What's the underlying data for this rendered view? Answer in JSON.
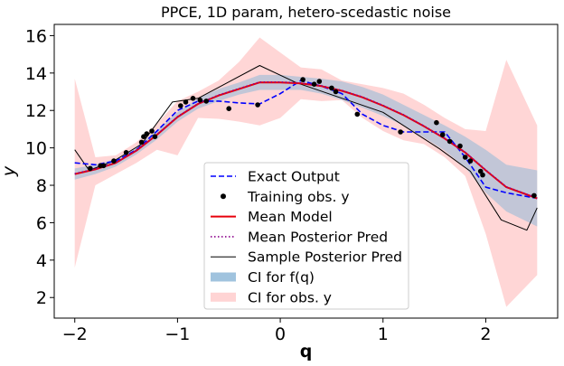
{
  "chart_data": {
    "type": "line",
    "title": "PPCE, 1D param, hetero-scedastic noise",
    "xlabel": "q",
    "ylabel": "y",
    "xlim": [
      -2.2,
      2.7
    ],
    "ylim": [
      0.9,
      16.6
    ],
    "xticks": [
      -2,
      -1,
      0,
      1,
      2
    ],
    "yticks": [
      2,
      4,
      6,
      8,
      10,
      12,
      14,
      16
    ],
    "grid": false,
    "legend_position": "bottom-center",
    "series": [
      {
        "name": "Exact Output",
        "style": "dashed",
        "color": "#0000ff",
        "x": [
          -2.0,
          -1.8,
          -1.6,
          -1.4,
          -1.2,
          -1.0,
          -0.8,
          -0.6,
          -0.4,
          -0.2,
          0.0,
          0.2,
          0.4,
          0.6,
          0.8,
          1.0,
          1.2,
          1.4,
          1.6,
          1.8,
          2.0,
          2.2,
          2.5
        ],
        "y": [
          9.2,
          9.1,
          9.3,
          9.9,
          10.9,
          12.0,
          12.5,
          12.5,
          12.4,
          12.35,
          12.9,
          13.6,
          13.3,
          12.9,
          11.8,
          11.2,
          10.85,
          10.85,
          10.85,
          9.5,
          7.9,
          7.6,
          7.3
        ]
      },
      {
        "name": "Training obs. y",
        "style": "points",
        "color": "#000000",
        "x": [
          -1.85,
          -1.75,
          -1.72,
          -1.62,
          -1.5,
          -1.35,
          -1.33,
          -1.3,
          -1.25,
          -1.22,
          -0.97,
          -0.92,
          -0.85,
          -0.78,
          -0.72,
          -0.5,
          -0.22,
          0.22,
          0.33,
          0.38,
          0.5,
          0.54,
          0.75,
          1.17,
          1.52,
          1.58,
          1.65,
          1.75,
          1.8,
          1.85,
          1.95,
          1.97,
          2.47
        ],
        "y": [
          8.9,
          9.05,
          9.05,
          9.3,
          9.75,
          10.3,
          10.6,
          10.75,
          10.9,
          10.6,
          12.25,
          12.45,
          12.65,
          12.55,
          12.5,
          12.1,
          12.3,
          13.65,
          13.4,
          13.55,
          13.2,
          13.0,
          11.8,
          10.85,
          11.35,
          10.7,
          10.35,
          10.1,
          9.5,
          9.3,
          8.75,
          8.55,
          7.45
        ]
      },
      {
        "name": "Mean Model",
        "style": "solid",
        "color": "#e8000b",
        "x": [
          -2.0,
          -1.8,
          -1.6,
          -1.4,
          -1.2,
          -1.0,
          -0.8,
          -0.6,
          -0.4,
          -0.2,
          0.0,
          0.2,
          0.4,
          0.6,
          0.8,
          1.0,
          1.2,
          1.4,
          1.6,
          1.8,
          2.0,
          2.2,
          2.5
        ],
        "y": [
          8.6,
          8.85,
          9.2,
          9.85,
          10.7,
          11.65,
          12.35,
          12.8,
          13.15,
          13.5,
          13.5,
          13.45,
          13.3,
          13.05,
          12.7,
          12.25,
          11.75,
          11.15,
          10.5,
          9.75,
          8.8,
          7.9,
          7.3
        ]
      },
      {
        "name": "Mean Posterior Pred",
        "style": "dotted",
        "color": "#8b008b",
        "x": [
          -2.0,
          -1.8,
          -1.6,
          -1.4,
          -1.2,
          -1.0,
          -0.8,
          -0.6,
          -0.4,
          -0.2,
          0.0,
          0.2,
          0.4,
          0.6,
          0.8,
          1.0,
          1.2,
          1.4,
          1.6,
          1.8,
          2.0,
          2.2,
          2.5
        ],
        "y": [
          8.62,
          8.87,
          9.22,
          9.87,
          10.72,
          11.67,
          12.37,
          12.82,
          13.17,
          13.52,
          13.52,
          13.47,
          13.32,
          13.07,
          12.72,
          12.27,
          11.77,
          11.17,
          10.52,
          9.77,
          8.82,
          7.92,
          7.32
        ]
      },
      {
        "name": "Sample Posterior Pred",
        "style": "solid-thin",
        "color": "#000000",
        "x": [
          -2.0,
          -1.86,
          -1.62,
          -1.35,
          -1.05,
          -0.8,
          -0.2,
          0.15,
          1.0,
          1.55,
          1.85,
          2.15,
          2.4,
          2.5
        ],
        "y": [
          9.9,
          8.8,
          9.3,
          10.2,
          12.45,
          12.65,
          14.4,
          13.5,
          11.9,
          9.95,
          8.75,
          6.15,
          5.6,
          6.8
        ]
      }
    ],
    "bands": [
      {
        "name": "CI for f(q)",
        "color": "#8fb9d8",
        "opacity": 0.55,
        "x": [
          -2.0,
          -1.8,
          -1.6,
          -1.4,
          -1.2,
          -1.0,
          -0.8,
          -0.6,
          -0.4,
          -0.2,
          0.0,
          0.2,
          0.4,
          0.6,
          0.8,
          1.0,
          1.2,
          1.4,
          1.6,
          1.8,
          2.0,
          2.2,
          2.5
        ],
        "lower": [
          8.3,
          8.6,
          9.0,
          9.65,
          10.45,
          11.4,
          12.1,
          12.5,
          12.85,
          13.1,
          13.1,
          13.1,
          12.9,
          12.55,
          12.15,
          11.7,
          11.2,
          10.55,
          9.85,
          8.95,
          7.6,
          6.6,
          5.8
        ],
        "upper": [
          8.9,
          9.1,
          9.4,
          10.05,
          10.95,
          11.9,
          12.65,
          13.15,
          13.5,
          13.9,
          13.9,
          13.8,
          13.7,
          13.55,
          13.25,
          12.85,
          12.3,
          11.75,
          11.2,
          10.6,
          9.9,
          9.1,
          8.8
        ]
      },
      {
        "name": "CI for obs. y",
        "color": "#ff9999",
        "opacity": 0.4,
        "x": [
          -2.0,
          -1.8,
          -1.6,
          -1.4,
          -1.2,
          -1.0,
          -0.8,
          -0.6,
          -0.4,
          -0.2,
          0.0,
          0.2,
          0.4,
          0.6,
          0.8,
          1.0,
          1.2,
          1.4,
          1.6,
          1.8,
          2.0,
          2.2,
          2.5
        ],
        "lower": [
          3.6,
          8.0,
          8.6,
          9.2,
          9.9,
          9.6,
          11.6,
          11.55,
          11.4,
          11.2,
          11.6,
          12.6,
          12.5,
          12.55,
          11.6,
          10.9,
          10.4,
          10.2,
          9.5,
          8.5,
          5.4,
          1.5,
          3.2
        ],
        "upper": [
          13.7,
          9.5,
          9.6,
          10.3,
          11.3,
          12.5,
          13.0,
          13.6,
          14.6,
          15.9,
          15.1,
          14.3,
          14.2,
          13.6,
          13.4,
          13.2,
          12.9,
          12.3,
          11.6,
          11.0,
          10.9,
          14.7,
          11.2
        ]
      }
    ],
    "legend": [
      {
        "label": "Exact Output",
        "kind": "dashed",
        "color": "#0000ff"
      },
      {
        "label": "Training obs. y",
        "kind": "point",
        "color": "#000000"
      },
      {
        "label": "Mean Model",
        "kind": "solid",
        "color": "#e8000b"
      },
      {
        "label": "Mean Posterior Pred",
        "kind": "dotted",
        "color": "#8b008b"
      },
      {
        "label": "Sample Posterior Pred",
        "kind": "solid-thin",
        "color": "#000000"
      },
      {
        "label": "CI for f(q)",
        "kind": "patch",
        "color": "#8fb9d8"
      },
      {
        "label": "CI for obs. y",
        "kind": "patch",
        "color": "#ffcccc"
      }
    ]
  }
}
